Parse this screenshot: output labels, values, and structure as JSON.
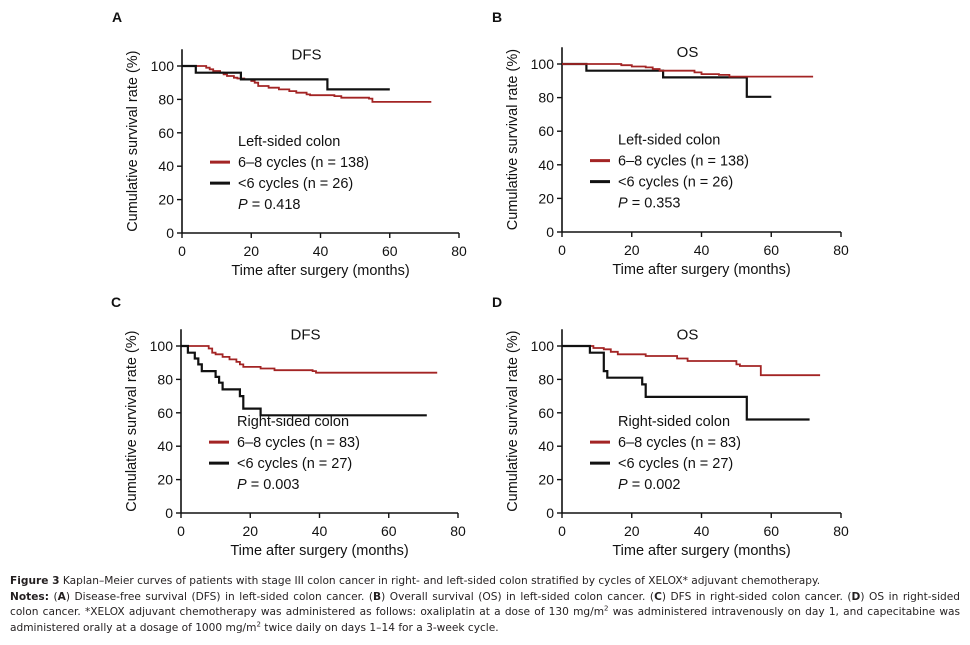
{
  "chart_data": [
    {
      "type": "line",
      "subtype": "kaplan-meier-step",
      "panel": "A",
      "title": "DFS",
      "xlabel": "Time after surgery (months)",
      "ylabel": "Cumulative survival rate (%)",
      "xlim": [
        0,
        80
      ],
      "ylim": [
        0,
        110
      ],
      "xticks": [
        0,
        20,
        40,
        60,
        80
      ],
      "yticks": [
        0,
        20,
        40,
        60,
        80,
        100
      ],
      "legend_title": "Left-sided colon",
      "p_label": "P",
      "p_value": "= 0.418",
      "legend": "lower-left",
      "series": [
        {
          "name": "6–8 cycles (n = 138)",
          "color": "#a32424",
          "steps": [
            [
              0,
              100
            ],
            [
              6,
              100
            ],
            [
              7,
              99
            ],
            [
              8,
              98
            ],
            [
              9,
              97
            ],
            [
              11,
              96
            ],
            [
              12,
              95
            ],
            [
              13,
              94
            ],
            [
              15,
              93
            ],
            [
              16,
              92.5
            ],
            [
              18,
              92
            ],
            [
              20,
              91
            ],
            [
              21,
              90
            ],
            [
              22,
              88
            ],
            [
              25,
              87
            ],
            [
              28,
              86
            ],
            [
              31,
              85
            ],
            [
              33,
              84
            ],
            [
              36,
              83
            ],
            [
              37,
              82.5
            ],
            [
              44,
              82
            ],
            [
              46,
              81
            ],
            [
              54,
              80.5
            ],
            [
              55,
              78.5
            ],
            [
              72,
              78.5
            ]
          ]
        },
        {
          "name": "<6 cycles (n = 26)",
          "color": "#111111",
          "steps": [
            [
              0,
              100
            ],
            [
              4,
              100
            ],
            [
              4,
              96
            ],
            [
              17,
              96
            ],
            [
              17,
              92
            ],
            [
              42,
              92
            ],
            [
              42,
              86
            ],
            [
              60,
              86
            ]
          ]
        }
      ]
    },
    {
      "type": "line",
      "subtype": "kaplan-meier-step",
      "panel": "B",
      "title": "OS",
      "xlabel": "Time after surgery (months)",
      "ylabel": "Cumulative survival rate (%)",
      "xlim": [
        0,
        80
      ],
      "ylim": [
        0,
        110
      ],
      "xticks": [
        0,
        20,
        40,
        60,
        80
      ],
      "yticks": [
        0,
        20,
        40,
        60,
        80,
        100
      ],
      "legend_title": "Left-sided colon",
      "p_label": "P",
      "p_value": "= 0.353",
      "legend": "lower-left",
      "series": [
        {
          "name": "6–8 cycles (n = 138)",
          "color": "#a32424",
          "steps": [
            [
              0,
              100
            ],
            [
              16,
              100
            ],
            [
              17,
              99.3
            ],
            [
              20,
              98.5
            ],
            [
              24,
              98
            ],
            [
              26,
              97
            ],
            [
              28,
              96
            ],
            [
              38,
              95
            ],
            [
              40,
              94
            ],
            [
              45,
              93.5
            ],
            [
              48,
              92.5
            ],
            [
              72,
              92.5
            ]
          ]
        },
        {
          "name": "<6 cycles (n = 26)",
          "color": "#111111",
          "steps": [
            [
              0,
              100
            ],
            [
              7,
              100
            ],
            [
              7,
              96
            ],
            [
              29,
              96
            ],
            [
              29,
              92
            ],
            [
              53,
              92
            ],
            [
              53,
              80.5
            ],
            [
              60,
              80.5
            ]
          ]
        }
      ]
    },
    {
      "type": "line",
      "subtype": "kaplan-meier-step",
      "panel": "C",
      "title": "DFS",
      "xlabel": "Time after surgery (months)",
      "ylabel": "Cumulative survival rate (%)",
      "xlim": [
        0,
        80
      ],
      "ylim": [
        0,
        110
      ],
      "xticks": [
        0,
        20,
        40,
        60,
        80
      ],
      "yticks": [
        0,
        20,
        40,
        60,
        80,
        100
      ],
      "legend_title": "Right-sided colon",
      "p_label": "P",
      "p_value": "= 0.003",
      "legend": "lower-left",
      "series": [
        {
          "name": "6–8 cycles (n = 83)",
          "color": "#a32424",
          "steps": [
            [
              0,
              100
            ],
            [
              7,
              100
            ],
            [
              8,
              98.5
            ],
            [
              9,
              96
            ],
            [
              10,
              95
            ],
            [
              12,
              93.5
            ],
            [
              14,
              92
            ],
            [
              16,
              90.5
            ],
            [
              17,
              89
            ],
            [
              18,
              87.5
            ],
            [
              23,
              86.5
            ],
            [
              27,
              85.5
            ],
            [
              38,
              85
            ],
            [
              39,
              84
            ],
            [
              74,
              84
            ]
          ]
        },
        {
          "name": "<6 cycles (n = 27)",
          "color": "#111111",
          "steps": [
            [
              0,
              100
            ],
            [
              2,
              100
            ],
            [
              2,
              96
            ],
            [
              4,
              96
            ],
            [
              4,
              92.5
            ],
            [
              5,
              92.5
            ],
            [
              5,
              89
            ],
            [
              6,
              89
            ],
            [
              6,
              85
            ],
            [
              10,
              85
            ],
            [
              10,
              81.5
            ],
            [
              11,
              81.5
            ],
            [
              11,
              78
            ],
            [
              12,
              78
            ],
            [
              12,
              74
            ],
            [
              17,
              74
            ],
            [
              17,
              70
            ],
            [
              18,
              70
            ],
            [
              18,
              62.5
            ],
            [
              23,
              62.5
            ],
            [
              23,
              58.5
            ],
            [
              71,
              58.5
            ]
          ]
        }
      ]
    },
    {
      "type": "line",
      "subtype": "kaplan-meier-step",
      "panel": "D",
      "title": "OS",
      "xlabel": "Time after surgery (months)",
      "ylabel": "Cumulative survival rate (%)",
      "xlim": [
        0,
        80
      ],
      "ylim": [
        0,
        110
      ],
      "xticks": [
        0,
        20,
        40,
        60,
        80
      ],
      "yticks": [
        0,
        20,
        40,
        60,
        80,
        100
      ],
      "legend_title": "Right-sided colon",
      "p_label": "P",
      "p_value": "= 0.002",
      "legend": "lower-left",
      "series": [
        {
          "name": "6–8 cycles (n = 83)",
          "color": "#a32424",
          "steps": [
            [
              0,
              100
            ],
            [
              8,
              100
            ],
            [
              9,
              98.8
            ],
            [
              12,
              98
            ],
            [
              14,
              96.5
            ],
            [
              16,
              95
            ],
            [
              24,
              94
            ],
            [
              33,
              92.5
            ],
            [
              36,
              91
            ],
            [
              50,
              89
            ],
            [
              51,
              88
            ],
            [
              57,
              88
            ],
            [
              57,
              82.5
            ],
            [
              74,
              82.5
            ]
          ]
        },
        {
          "name": "<6 cycles (n = 27)",
          "color": "#111111",
          "steps": [
            [
              0,
              100
            ],
            [
              8,
              100
            ],
            [
              8,
              96
            ],
            [
              12,
              96
            ],
            [
              12,
              85
            ],
            [
              13,
              85
            ],
            [
              13,
              81
            ],
            [
              23,
              81
            ],
            [
              23,
              77
            ],
            [
              24,
              77
            ],
            [
              24,
              69.5
            ],
            [
              53,
              69.5
            ],
            [
              53,
              56
            ],
            [
              71,
              56
            ]
          ]
        }
      ]
    }
  ],
  "panels": [
    {
      "label": "A"
    },
    {
      "label": "B"
    },
    {
      "label": "C"
    },
    {
      "label": "D"
    }
  ],
  "caption": {
    "figure_label": "Figure 3",
    "figure_text": " Kaplan–Meier curves of patients with stage III colon cancer in right- and left-sided colon stratified by cycles of XELOX* adjuvant chemotherapy.",
    "notes_label": "Notes:",
    "notes_parts": [
      " (",
      "A",
      ") Disease-free survival (DFS) in left-sided colon cancer. (",
      "B",
      ") Overall survival (OS) in left-sided colon cancer. (",
      "C",
      ") DFS in right-sided colon cancer. (",
      "D",
      ") OS in right-sided colon cancer. *XELOX adjuvant chemotherapy was administered as follows: oxaliplatin at a dose of 130 mg/m",
      "2",
      " was administered intravenously on day 1, and capecitabine was administered orally at a dosage of 1000 mg/m",
      "2",
      " twice daily on days 1–14 for a 3-week cycle."
    ]
  }
}
